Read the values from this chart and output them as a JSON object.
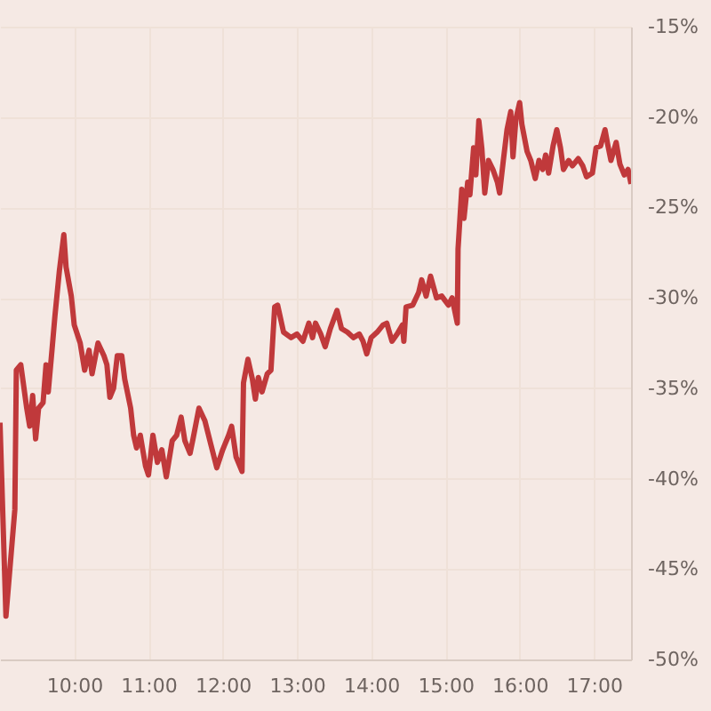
{
  "chart_data": {
    "type": "line",
    "x": [
      9.0,
      9.08,
      9.2,
      9.22,
      9.28,
      9.36,
      9.4,
      9.44,
      9.48,
      9.52,
      9.58,
      9.62,
      9.65,
      9.7,
      9.74,
      9.8,
      9.86,
      9.89,
      9.96,
      10.0,
      10.08,
      10.14,
      10.2,
      10.24,
      10.32,
      10.4,
      10.44,
      10.48,
      10.53,
      10.58,
      10.64,
      10.68,
      10.76,
      10.8,
      10.84,
      10.89,
      10.96,
      11.0,
      11.06,
      11.12,
      11.18,
      11.24,
      11.32,
      11.38,
      11.44,
      11.49,
      11.56,
      11.6,
      11.68,
      11.76,
      11.84,
      11.92,
      12.0,
      12.08,
      12.12,
      12.18,
      12.26,
      12.28,
      12.34,
      12.4,
      12.44,
      12.48,
      12.53,
      12.6,
      12.65,
      12.7,
      12.74,
      12.82,
      12.92,
      13.0,
      13.08,
      13.16,
      13.21,
      13.25,
      13.32,
      13.38,
      13.45,
      13.54,
      13.6,
      13.68,
      13.76,
      13.84,
      13.89,
      13.94,
      14.0,
      14.08,
      14.16,
      14.21,
      14.28,
      14.35,
      14.42,
      14.44,
      14.47,
      14.56,
      14.64,
      14.68,
      14.74,
      14.8,
      14.88,
      14.95,
      15.04,
      15.09,
      15.16,
      15.17,
      15.22,
      15.25,
      15.3,
      15.33,
      15.38,
      15.41,
      15.45,
      15.49,
      15.53,
      15.58,
      15.64,
      15.7,
      15.73,
      15.78,
      15.83,
      15.88,
      15.91,
      15.95,
      16.0,
      16.03,
      16.1,
      16.15,
      16.21,
      16.26,
      16.31,
      16.35,
      16.39,
      16.45,
      16.5,
      16.55,
      16.59,
      16.66,
      16.71,
      16.79,
      16.85,
      16.9,
      16.98,
      17.03,
      17.09,
      17.15,
      17.19,
      17.23,
      17.3,
      17.35,
      17.41,
      17.46,
      17.5
    ],
    "series": [
      {
        "color": "#c0393b",
        "values": [
          -36.9,
          -47.6,
          -41.7,
          -34.0,
          -33.7,
          -36.1,
          -37.1,
          -35.4,
          -37.8,
          -36.1,
          -35.8,
          -33.7,
          -35.2,
          -32.9,
          -31.0,
          -28.5,
          -26.5,
          -28.3,
          -29.9,
          -31.5,
          -32.5,
          -34.0,
          -32.9,
          -34.2,
          -32.5,
          -33.2,
          -33.7,
          -35.5,
          -35.0,
          -33.2,
          -33.2,
          -34.5,
          -36.1,
          -37.6,
          -38.3,
          -37.6,
          -39.3,
          -39.8,
          -37.6,
          -39.1,
          -38.4,
          -39.9,
          -37.9,
          -37.6,
          -36.6,
          -37.9,
          -38.6,
          -37.8,
          -36.1,
          -36.8,
          -38.1,
          -39.4,
          -38.4,
          -37.6,
          -37.1,
          -38.8,
          -39.6,
          -34.7,
          -33.4,
          -34.5,
          -35.6,
          -34.4,
          -35.2,
          -34.2,
          -34.0,
          -30.5,
          -30.4,
          -31.9,
          -32.2,
          -32.0,
          -32.4,
          -31.4,
          -32.2,
          -31.4,
          -32.0,
          -32.7,
          -31.7,
          -30.7,
          -31.7,
          -31.9,
          -32.2,
          -32.0,
          -32.4,
          -33.1,
          -32.2,
          -31.9,
          -31.5,
          -31.4,
          -32.4,
          -32.0,
          -31.5,
          -32.4,
          -30.5,
          -30.4,
          -29.7,
          -29.0,
          -29.9,
          -28.8,
          -30.0,
          -29.9,
          -30.4,
          -30.0,
          -31.4,
          -27.3,
          -24.0,
          -25.6,
          -23.6,
          -24.3,
          -21.7,
          -23.2,
          -20.2,
          -21.7,
          -24.2,
          -22.4,
          -22.9,
          -23.6,
          -24.2,
          -22.4,
          -20.7,
          -19.7,
          -22.2,
          -20.1,
          -19.2,
          -20.4,
          -21.9,
          -22.4,
          -23.4,
          -22.4,
          -22.9,
          -22.1,
          -23.1,
          -21.6,
          -20.7,
          -21.7,
          -22.9,
          -22.4,
          -22.7,
          -22.3,
          -22.7,
          -23.3,
          -23.1,
          -21.7,
          -21.6,
          -20.7,
          -21.6,
          -22.4,
          -21.4,
          -22.6,
          -23.2,
          -22.9,
          -23.7
        ]
      }
    ],
    "xlim": [
      9,
      17.5
    ],
    "ylim": [
      -50,
      -15
    ],
    "xticks": [
      {
        "value": 10,
        "label": "10:00"
      },
      {
        "value": 11,
        "label": "11:00"
      },
      {
        "value": 12,
        "label": "12:00"
      },
      {
        "value": 13,
        "label": "13:00"
      },
      {
        "value": 14,
        "label": "14:00"
      },
      {
        "value": 15,
        "label": "15:00"
      },
      {
        "value": 16,
        "label": "16:00"
      },
      {
        "value": 17,
        "label": "17:00"
      }
    ],
    "yticks": [
      {
        "value": -15,
        "label": "-15%"
      },
      {
        "value": -20,
        "label": "-20%"
      },
      {
        "value": -25,
        "label": "-25%"
      },
      {
        "value": -30,
        "label": "-30%"
      },
      {
        "value": -35,
        "label": "-35%"
      },
      {
        "value": -40,
        "label": "-40%"
      },
      {
        "value": -45,
        "label": "-45%"
      },
      {
        "value": -50,
        "label": "-50%"
      }
    ],
    "grid": true
  }
}
